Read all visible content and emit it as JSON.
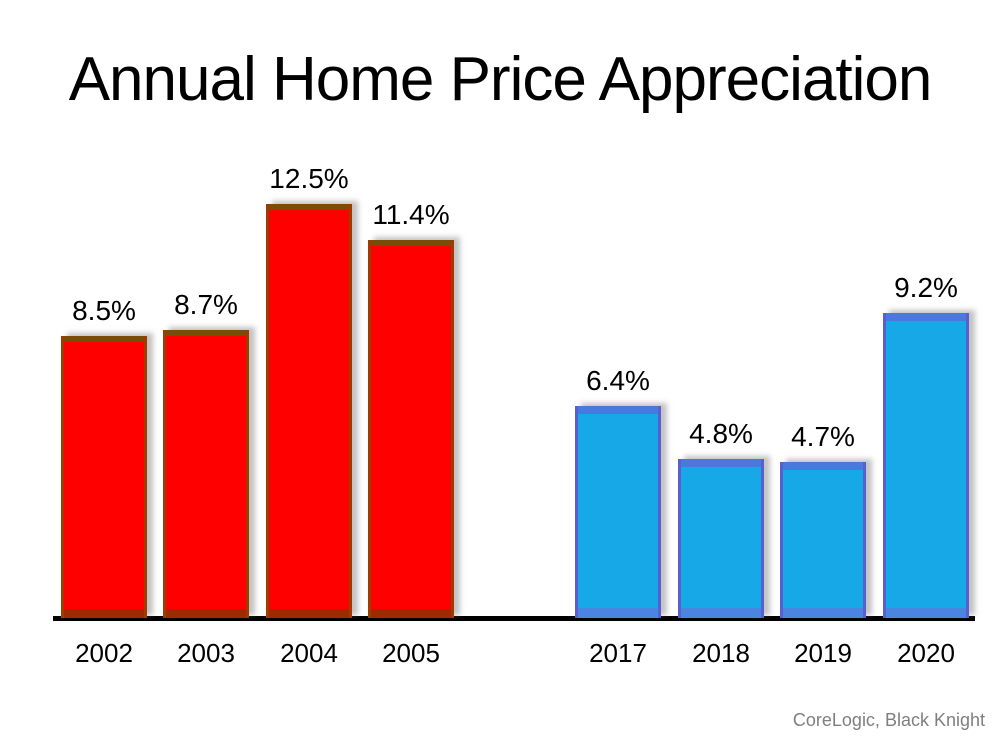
{
  "chart_data": {
    "type": "bar",
    "title": "Annual Home Price Appreciation",
    "categories": [
      "2002",
      "2003",
      "2004",
      "2005",
      "2017",
      "2018",
      "2019",
      "2020"
    ],
    "values": [
      8.5,
      8.7,
      12.5,
      11.4,
      6.4,
      4.8,
      4.7,
      9.2
    ],
    "bars": [
      {
        "category": "2002",
        "value": 8.5,
        "label": "8.5%",
        "group": "red"
      },
      {
        "category": "2003",
        "value": 8.7,
        "label": "8.7%",
        "group": "red"
      },
      {
        "category": "2004",
        "value": 12.5,
        "label": "12.5%",
        "group": "red"
      },
      {
        "category": "2005",
        "value": 11.4,
        "label": "11.4%",
        "group": "red"
      },
      {
        "category": "2017",
        "value": 6.4,
        "label": "6.4%",
        "group": "blue"
      },
      {
        "category": "2018",
        "value": 4.8,
        "label": "4.8%",
        "group": "blue"
      },
      {
        "category": "2019",
        "value": 4.7,
        "label": "4.7%",
        "group": "blue"
      },
      {
        "category": "2020",
        "value": 9.2,
        "label": "9.2%",
        "group": "blue"
      }
    ],
    "series": [
      {
        "name": "2002-2005",
        "color": "#FE0000",
        "values": [
          8.5,
          8.7,
          12.5,
          11.4
        ]
      },
      {
        "name": "2017-2020",
        "color": "#17A8E8",
        "values": [
          6.4,
          4.8,
          4.7,
          9.2
        ]
      }
    ],
    "xlabel": "",
    "ylabel": "",
    "ylim": [
      0,
      14
    ],
    "grid": false,
    "legend_position": "none",
    "value_label_suffix": "%",
    "source": "CoreLogic, Black Knight"
  },
  "colors": {
    "red": {
      "fill": "#FE0000",
      "edge": "#9E3B00",
      "top": "#7B4B08",
      "bottom": "#A02900"
    },
    "blue": {
      "fill": "#17A8E8",
      "edge": "#5A5FD0",
      "top": "#4A78DC",
      "bottom": "#4A86E0"
    },
    "axis": "#000000",
    "title_text": "#000000",
    "source_text": "#7F7F7F"
  }
}
